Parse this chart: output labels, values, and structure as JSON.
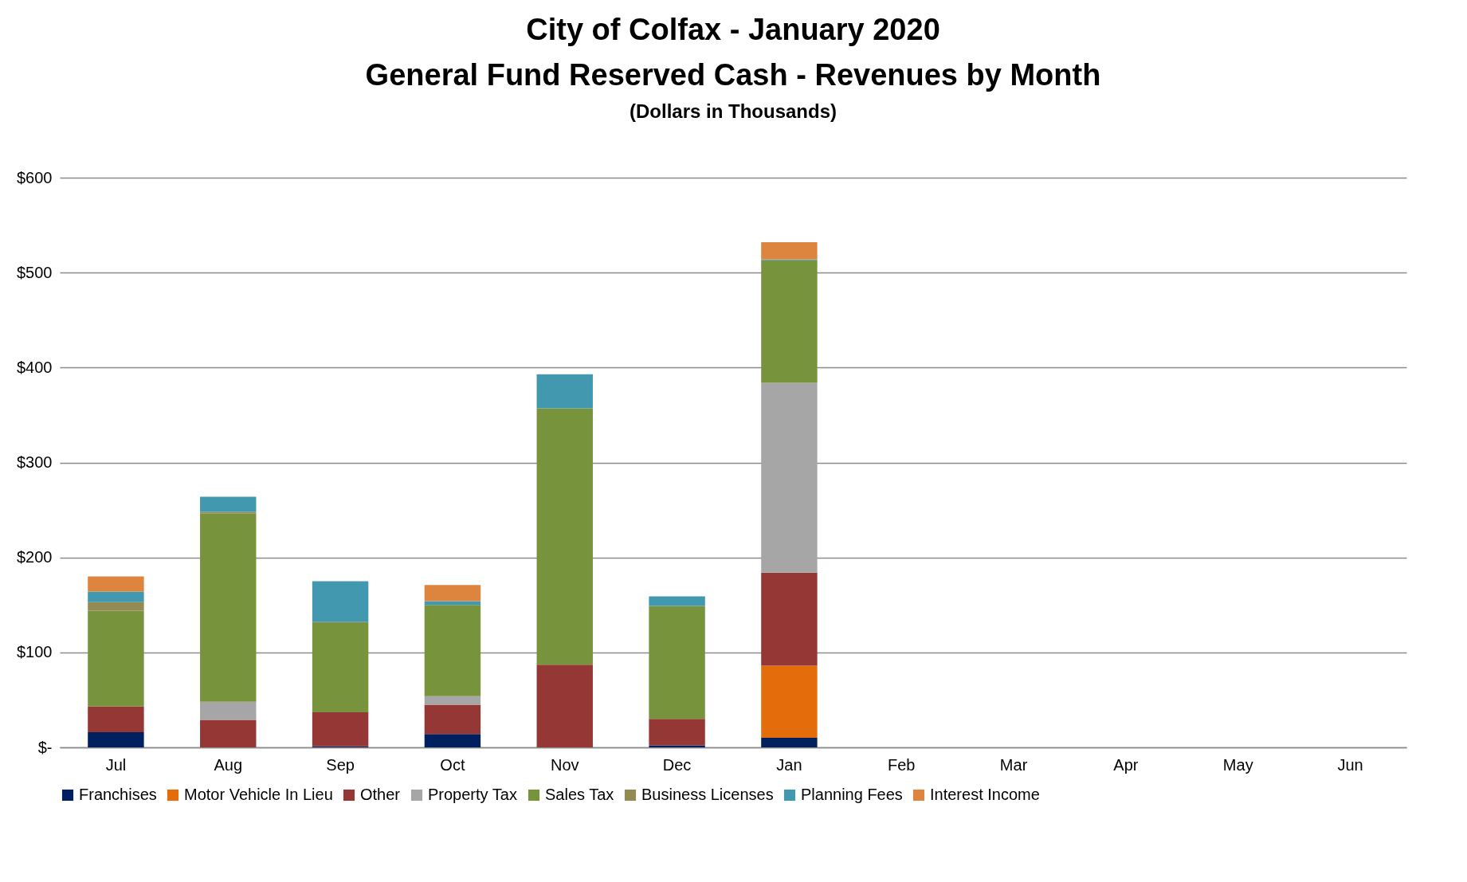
{
  "chart_data": {
    "type": "bar",
    "stacked": true,
    "title": [
      "City of Colfax - January 2020",
      "General Fund Reserved Cash - Revenues by Month"
    ],
    "subtitle": "(Dollars in Thousands)",
    "categories": [
      "Jul",
      "Aug",
      "Sep",
      "Oct",
      "Nov",
      "Dec",
      "Jan",
      "Feb",
      "Mar",
      "Apr",
      "May",
      "Jun"
    ],
    "series": [
      {
        "name": "Franchises",
        "color": "#002060",
        "values": [
          16,
          null,
          1,
          14,
          null,
          2,
          10,
          null,
          null,
          null,
          null,
          null
        ]
      },
      {
        "name": "Motor Vehicle In Lieu",
        "color": "#e46c0a",
        "values": [
          null,
          null,
          null,
          null,
          null,
          null,
          76,
          null,
          null,
          null,
          null,
          null
        ]
      },
      {
        "name": "Other",
        "color": "#953735",
        "values": [
          27,
          29,
          36,
          31,
          87,
          28,
          98,
          null,
          null,
          null,
          null,
          null
        ]
      },
      {
        "name": "Property Tax",
        "color": "#a6a6a6",
        "values": [
          null,
          19,
          null,
          9,
          null,
          null,
          200,
          null,
          null,
          null,
          null,
          null
        ]
      },
      {
        "name": "Sales Tax",
        "color": "#77933c",
        "values": [
          101,
          198,
          94,
          96,
          270,
          119,
          129,
          null,
          null,
          null,
          null,
          null
        ]
      },
      {
        "name": "Business Licenses",
        "color": "#948a54",
        "values": [
          9,
          2,
          1,
          null,
          null,
          null,
          null,
          null,
          null,
          null,
          null,
          null
        ]
      },
      {
        "name": "Planning Fees",
        "color": "#4198af",
        "values": [
          11,
          16,
          43,
          4,
          36,
          10,
          1,
          null,
          null,
          null,
          null,
          null
        ]
      },
      {
        "name": "Interest Income",
        "color": "#dd843e",
        "values": [
          16,
          null,
          null,
          17,
          null,
          null,
          18,
          null,
          null,
          null,
          null,
          null
        ]
      }
    ],
    "ylim": [
      0,
      600
    ],
    "yticks": [
      {
        "value": 0,
        "label": "$-"
      },
      {
        "value": 100,
        "label": "$100"
      },
      {
        "value": 200,
        "label": "$200"
      },
      {
        "value": 300,
        "label": "$300"
      },
      {
        "value": 400,
        "label": "$400"
      },
      {
        "value": 500,
        "label": "$500"
      },
      {
        "value": 600,
        "label": "$600"
      }
    ],
    "grid": "y",
    "legend": "bottom"
  }
}
